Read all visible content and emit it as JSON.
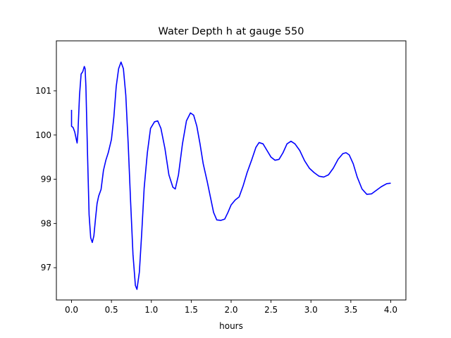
{
  "chart_data": {
    "type": "line",
    "title": "Water Depth h at gauge 550",
    "xlabel": "hours",
    "ylabel": "",
    "xlim": [
      -0.19,
      4.19
    ],
    "ylim": [
      96.27,
      102.13
    ],
    "x_ticks": [
      0.0,
      0.5,
      1.0,
      1.5,
      2.0,
      2.5,
      3.0,
      3.5,
      4.0
    ],
    "x_tick_labels": [
      "0.0",
      "0.5",
      "1.0",
      "1.5",
      "2.0",
      "2.5",
      "3.0",
      "3.5",
      "4.0"
    ],
    "y_ticks": [
      97,
      98,
      99,
      100,
      101
    ],
    "y_tick_labels": [
      "97",
      "98",
      "99",
      "100",
      "101"
    ],
    "grid": false,
    "legend": "none",
    "series": [
      {
        "color": "#0000ff",
        "points": [
          [
            0.0,
            100.57
          ],
          [
            0.0,
            100.2
          ],
          [
            0.02,
            100.17
          ],
          [
            0.04,
            100.07
          ],
          [
            0.06,
            99.9
          ],
          [
            0.07,
            99.82
          ],
          [
            0.08,
            100.05
          ],
          [
            0.1,
            100.9
          ],
          [
            0.12,
            101.38
          ],
          [
            0.14,
            101.43
          ],
          [
            0.16,
            101.55
          ],
          [
            0.17,
            101.5
          ],
          [
            0.18,
            101.1
          ],
          [
            0.2,
            99.6
          ],
          [
            0.22,
            98.2
          ],
          [
            0.24,
            97.68
          ],
          [
            0.26,
            97.57
          ],
          [
            0.28,
            97.72
          ],
          [
            0.3,
            98.1
          ],
          [
            0.32,
            98.45
          ],
          [
            0.34,
            98.62
          ],
          [
            0.37,
            98.77
          ],
          [
            0.4,
            99.2
          ],
          [
            0.43,
            99.43
          ],
          [
            0.46,
            99.6
          ],
          [
            0.5,
            99.9
          ],
          [
            0.53,
            100.4
          ],
          [
            0.56,
            101.1
          ],
          [
            0.59,
            101.5
          ],
          [
            0.62,
            101.65
          ],
          [
            0.65,
            101.5
          ],
          [
            0.68,
            100.9
          ],
          [
            0.71,
            99.8
          ],
          [
            0.74,
            98.5
          ],
          [
            0.77,
            97.3
          ],
          [
            0.8,
            96.6
          ],
          [
            0.82,
            96.51
          ],
          [
            0.85,
            96.9
          ],
          [
            0.88,
            97.8
          ],
          [
            0.91,
            98.8
          ],
          [
            0.95,
            99.6
          ],
          [
            0.99,
            100.15
          ],
          [
            1.04,
            100.3
          ],
          [
            1.08,
            100.32
          ],
          [
            1.12,
            100.15
          ],
          [
            1.17,
            99.7
          ],
          [
            1.22,
            99.1
          ],
          [
            1.27,
            98.82
          ],
          [
            1.3,
            98.78
          ],
          [
            1.34,
            99.1
          ],
          [
            1.39,
            99.8
          ],
          [
            1.44,
            100.32
          ],
          [
            1.49,
            100.5
          ],
          [
            1.53,
            100.45
          ],
          [
            1.57,
            100.2
          ],
          [
            1.61,
            99.8
          ],
          [
            1.65,
            99.35
          ],
          [
            1.7,
            98.95
          ],
          [
            1.74,
            98.6
          ],
          [
            1.78,
            98.25
          ],
          [
            1.82,
            98.08
          ],
          [
            1.87,
            98.07
          ],
          [
            1.92,
            98.1
          ],
          [
            1.96,
            98.25
          ],
          [
            2.0,
            98.42
          ],
          [
            2.05,
            98.53
          ],
          [
            2.1,
            98.6
          ],
          [
            2.15,
            98.85
          ],
          [
            2.2,
            99.15
          ],
          [
            2.26,
            99.45
          ],
          [
            2.31,
            99.72
          ],
          [
            2.35,
            99.83
          ],
          [
            2.4,
            99.8
          ],
          [
            2.45,
            99.65
          ],
          [
            2.5,
            99.5
          ],
          [
            2.55,
            99.43
          ],
          [
            2.6,
            99.45
          ],
          [
            2.65,
            99.6
          ],
          [
            2.7,
            99.8
          ],
          [
            2.75,
            99.86
          ],
          [
            2.8,
            99.8
          ],
          [
            2.86,
            99.65
          ],
          [
            2.92,
            99.42
          ],
          [
            2.98,
            99.25
          ],
          [
            3.04,
            99.15
          ],
          [
            3.1,
            99.07
          ],
          [
            3.16,
            99.05
          ],
          [
            3.22,
            99.1
          ],
          [
            3.28,
            99.25
          ],
          [
            3.34,
            99.45
          ],
          [
            3.4,
            99.58
          ],
          [
            3.44,
            99.6
          ],
          [
            3.48,
            99.55
          ],
          [
            3.53,
            99.35
          ],
          [
            3.58,
            99.05
          ],
          [
            3.64,
            98.78
          ],
          [
            3.7,
            98.66
          ],
          [
            3.76,
            98.67
          ],
          [
            3.82,
            98.75
          ],
          [
            3.88,
            98.83
          ],
          [
            3.95,
            98.9
          ],
          [
            4.0,
            98.91
          ]
        ]
      }
    ]
  }
}
